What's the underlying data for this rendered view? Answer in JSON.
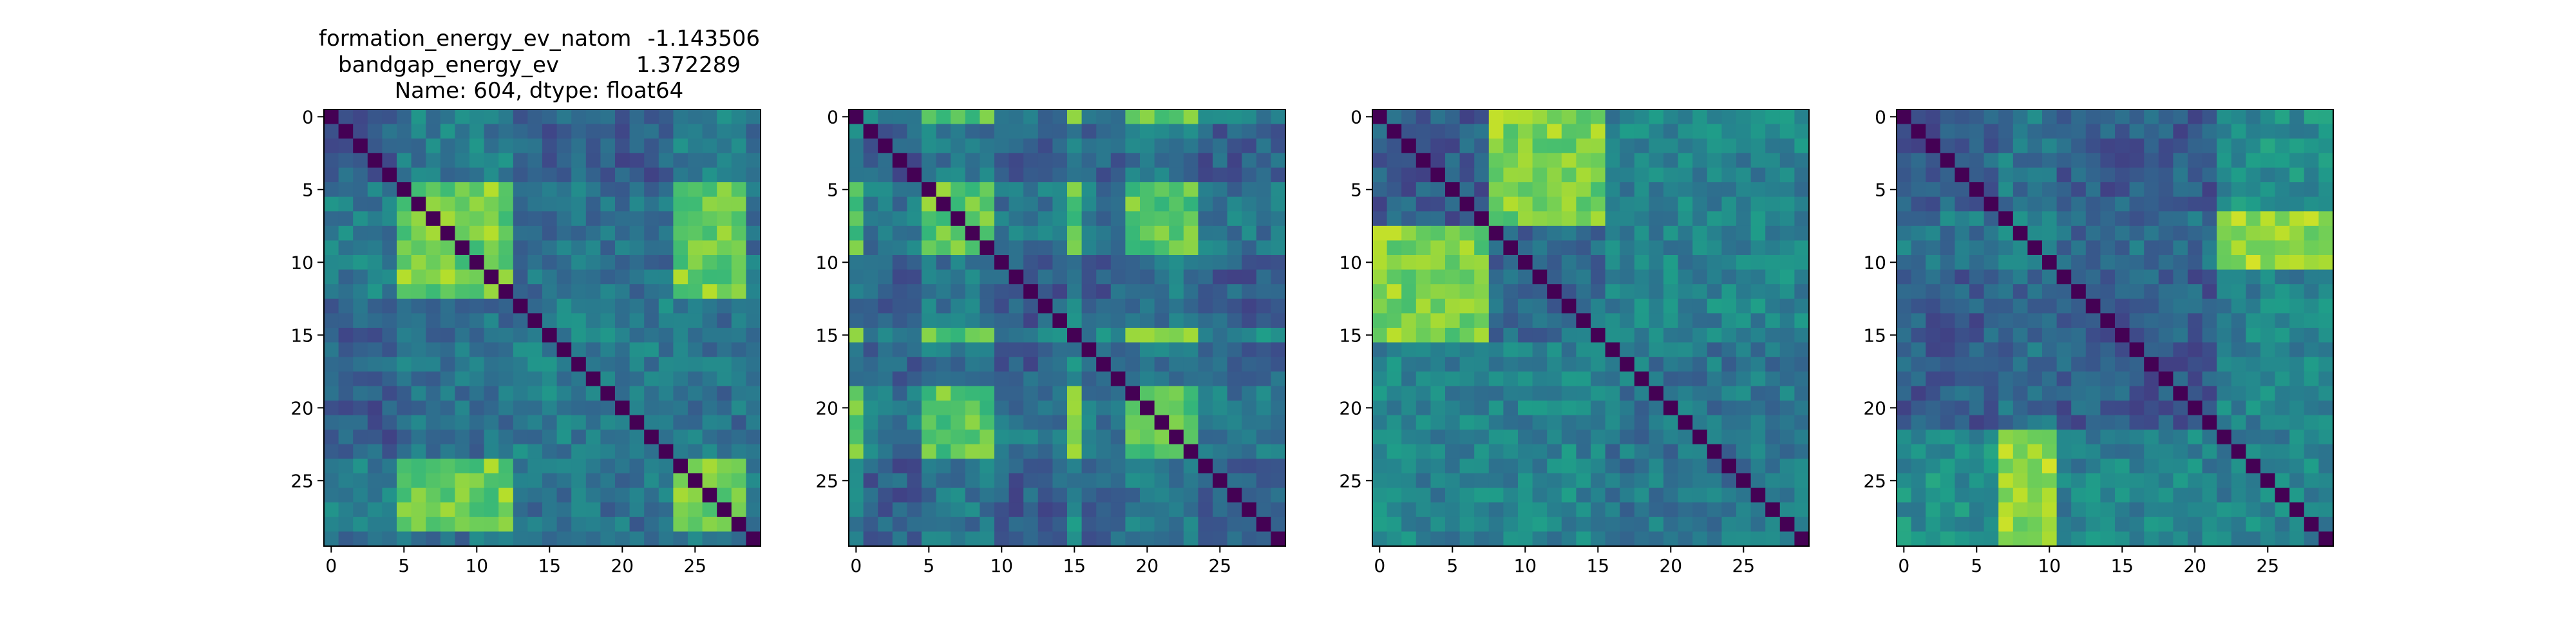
{
  "figure_title": {
    "line1_key": "formation_energy_ev_natom",
    "line1_val": "-1.143506",
    "line2_key": "bandgap_energy_ev",
    "line2_val": "1.372289",
    "line3": "Name: 604, dtype: float64"
  },
  "colormap": [
    "#440154",
    "#482878",
    "#3e4989",
    "#31688e",
    "#26828e",
    "#1f9e89",
    "#35b779",
    "#6ece58",
    "#b5de2b",
    "#fde725"
  ],
  "chart_data": [
    {
      "type": "heatmap",
      "title": "",
      "xlabel": "",
      "ylabel": "",
      "size": 30,
      "xticks": [
        0,
        5,
        10,
        15,
        20,
        25
      ],
      "yticks": [
        0,
        5,
        10,
        15,
        20,
        25
      ],
      "xlim": [
        -0.5,
        29.5
      ],
      "ylim": [
        29.5,
        -0.5
      ],
      "vmin": 0,
      "vmax": 1,
      "groups": [
        0,
        0,
        0,
        0,
        0,
        1,
        1,
        1,
        1,
        1,
        1,
        1,
        1,
        2,
        2,
        2,
        2,
        2,
        2,
        2,
        2,
        2,
        2,
        2,
        1,
        1,
        1,
        1,
        1,
        2
      ],
      "group_similarity": [
        [
          0.32,
          0.42,
          0.3
        ],
        [
          0.42,
          0.78,
          0.38
        ],
        [
          0.3,
          0.38,
          0.42
        ]
      ],
      "value_range": [
        0.0,
        1.0
      ]
    },
    {
      "type": "heatmap",
      "title": "",
      "xlabel": "",
      "ylabel": "",
      "size": 30,
      "xticks": [
        0,
        5,
        10,
        15,
        20,
        25
      ],
      "yticks": [
        0,
        5,
        10,
        15,
        20,
        25
      ],
      "xlim": [
        -0.5,
        29.5
      ],
      "ylim": [
        29.5,
        -0.5
      ],
      "vmin": 0,
      "vmax": 1,
      "groups": [
        1,
        0,
        0,
        0,
        0,
        1,
        1,
        1,
        1,
        1,
        0,
        0,
        0,
        0,
        0,
        2,
        0,
        0,
        0,
        1,
        1,
        1,
        1,
        1,
        0,
        0,
        0,
        0,
        0,
        0
      ],
      "group_similarity": [
        [
          0.3,
          0.4,
          0.45
        ],
        [
          0.4,
          0.75,
          0.75
        ],
        [
          0.45,
          0.75,
          0.55
        ]
      ],
      "value_range": [
        0.0,
        1.0
      ]
    },
    {
      "type": "heatmap",
      "title": "",
      "xlabel": "",
      "ylabel": "",
      "size": 30,
      "xticks": [
        0,
        5,
        10,
        15,
        20,
        25
      ],
      "yticks": [
        0,
        5,
        10,
        15,
        20,
        25
      ],
      "xlim": [
        -0.5,
        29.5
      ],
      "ylim": [
        29.5,
        -0.5
      ],
      "vmin": 0,
      "vmax": 1,
      "groups": [
        0,
        0,
        0,
        0,
        0,
        0,
        0,
        0,
        1,
        1,
        1,
        1,
        1,
        1,
        1,
        1,
        2,
        2,
        2,
        2,
        2,
        2,
        2,
        2,
        2,
        2,
        2,
        2,
        2,
        2
      ],
      "group_similarity": [
        [
          0.3,
          0.8,
          0.45
        ],
        [
          0.8,
          0.35,
          0.45
        ],
        [
          0.45,
          0.45,
          0.4
        ]
      ],
      "value_range": [
        0.0,
        1.0
      ]
    },
    {
      "type": "heatmap",
      "title": "",
      "xlabel": "",
      "ylabel": "",
      "size": 30,
      "xticks": [
        0,
        5,
        10,
        15,
        20,
        25
      ],
      "yticks": [
        0,
        5,
        10,
        15,
        20,
        25
      ],
      "xlim": [
        -0.5,
        29.5
      ],
      "ylim": [
        29.5,
        -0.5
      ],
      "vmin": 0,
      "vmax": 1,
      "groups": [
        0,
        0,
        0,
        0,
        0,
        0,
        0,
        1,
        1,
        1,
        1,
        2,
        2,
        2,
        2,
        2,
        2,
        2,
        2,
        2,
        2,
        2,
        3,
        3,
        3,
        3,
        3,
        3,
        3,
        3
      ],
      "group_similarity": [
        [
          0.3,
          0.4,
          0.3,
          0.5
        ],
        [
          0.4,
          0.45,
          0.35,
          0.85
        ],
        [
          0.3,
          0.35,
          0.3,
          0.45
        ],
        [
          0.5,
          0.85,
          0.45,
          0.45
        ]
      ],
      "value_range": [
        0.0,
        1.0
      ]
    }
  ]
}
